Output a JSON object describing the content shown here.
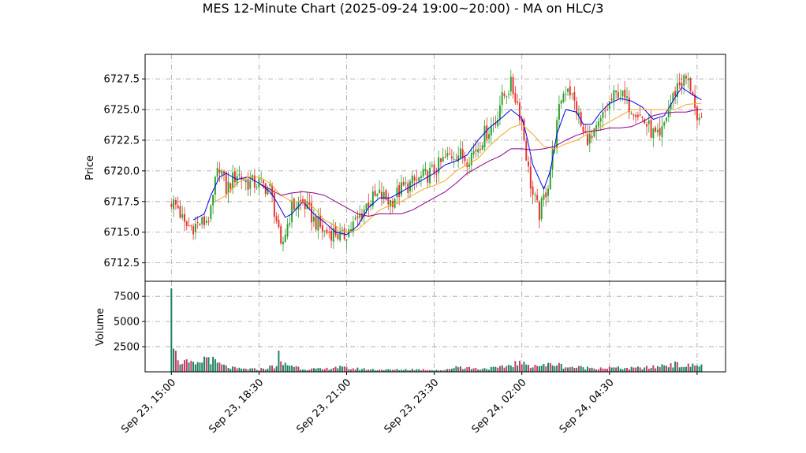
{
  "title": "MES 12-Minute Chart (2025-09-24 19:00~20:00) - MA on HLC/3",
  "colors": {
    "up": "#2ca02c",
    "down": "#e8312a",
    "vol_up": "#1a7f5f",
    "vol_down": "#c23a6a",
    "ma_fast": "#0000ee",
    "ma_mid": "#f5a623",
    "ma_slow": "#8b008b",
    "grid": "#a0a0a0"
  },
  "chart_data": [
    {
      "type": "candlestick",
      "ylabel": "Price",
      "ylim": [
        6711.0,
        6729.5
      ],
      "yticks": [
        6712.5,
        6715.0,
        6717.5,
        6720.0,
        6722.5,
        6725.0,
        6727.5
      ],
      "ytick_labels": [
        "6712.5",
        "6715.0",
        "6717.5",
        "6720.0",
        "6722.5",
        "6725.0",
        "6727.5"
      ],
      "x_range_bars": [
        -12,
        253
      ],
      "xticks": [
        0,
        40,
        80,
        120,
        160,
        200,
        240
      ],
      "xtick_labels": [
        "Sep 23, 15:00",
        "Sep 23, 18:30",
        "Sep 23, 21:00",
        "Sep 23, 23:30",
        "Sep 24, 02:00",
        "Sep 24, 04:30",
        ""
      ],
      "grid": true,
      "close_anchors": [
        [
          0,
          6717.5
        ],
        [
          3,
          6717.0
        ],
        [
          6,
          6715.5
        ],
        [
          10,
          6715.5
        ],
        [
          15,
          6715.8
        ],
        [
          18,
          6716.5
        ],
        [
          20,
          6719.0
        ],
        [
          22,
          6720.5
        ],
        [
          25,
          6718.5
        ],
        [
          30,
          6719.8
        ],
        [
          35,
          6719.0
        ],
        [
          40,
          6719.0
        ],
        [
          45,
          6718.5
        ],
        [
          48,
          6716.0
        ],
        [
          50,
          6713.5
        ],
        [
          52,
          6715.0
        ],
        [
          55,
          6717.0
        ],
        [
          60,
          6717.5
        ],
        [
          65,
          6716.0
        ],
        [
          70,
          6715.0
        ],
        [
          75,
          6715.0
        ],
        [
          78,
          6714.5
        ],
        [
          80,
          6715.0
        ],
        [
          85,
          6716.0
        ],
        [
          90,
          6717.5
        ],
        [
          95,
          6718.0
        ],
        [
          100,
          6717.5
        ],
        [
          105,
          6718.5
        ],
        [
          110,
          6719.0
        ],
        [
          115,
          6719.5
        ],
        [
          120,
          6720.0
        ],
        [
          125,
          6721.0
        ],
        [
          130,
          6721.5
        ],
        [
          135,
          6721.0
        ],
        [
          140,
          6722.0
        ],
        [
          143,
          6723.0
        ],
        [
          148,
          6724.0
        ],
        [
          150,
          6725.5
        ],
        [
          153,
          6726.5
        ],
        [
          155,
          6727.0
        ],
        [
          158,
          6725.5
        ],
        [
          160,
          6724.0
        ],
        [
          163,
          6720.0
        ],
        [
          165,
          6718.0
        ],
        [
          168,
          6716.5
        ],
        [
          172,
          6719.0
        ],
        [
          175,
          6722.5
        ],
        [
          178,
          6726.0
        ],
        [
          181,
          6727.0
        ],
        [
          185,
          6725.0
        ],
        [
          188,
          6723.0
        ],
        [
          192,
          6722.5
        ],
        [
          196,
          6724.0
        ],
        [
          200,
          6725.5
        ],
        [
          204,
          6726.5
        ],
        [
          208,
          6725.5
        ],
        [
          212,
          6725.0
        ],
        [
          216,
          6724.0
        ],
        [
          220,
          6723.0
        ],
        [
          223,
          6722.5
        ],
        [
          226,
          6724.5
        ],
        [
          228,
          6725.5
        ],
        [
          231,
          6727.0
        ],
        [
          235,
          6727.5
        ],
        [
          238,
          6726.5
        ],
        [
          240,
          6723.5
        ],
        [
          242,
          6724.0
        ]
      ],
      "series": [
        {
          "name": "",
          "role": "ma_fast",
          "values": [
            [
              10,
              6716.0
            ],
            [
              15,
              6716.5
            ],
            [
              18,
              6718.0
            ],
            [
              22,
              6719.5
            ],
            [
              25,
              6719.8
            ],
            [
              30,
              6719.3
            ],
            [
              35,
              6719.5
            ],
            [
              40,
              6719.0
            ],
            [
              45,
              6718.3
            ],
            [
              48,
              6717.5
            ],
            [
              52,
              6716.2
            ],
            [
              55,
              6716.5
            ],
            [
              60,
              6717.5
            ],
            [
              65,
              6716.5
            ],
            [
              70,
              6715.8
            ],
            [
              75,
              6715.0
            ],
            [
              80,
              6714.8
            ],
            [
              85,
              6715.5
            ],
            [
              90,
              6717.0
            ],
            [
              95,
              6717.8
            ],
            [
              100,
              6717.8
            ],
            [
              105,
              6718.3
            ],
            [
              110,
              6718.8
            ],
            [
              115,
              6719.3
            ],
            [
              120,
              6719.8
            ],
            [
              125,
              6720.5
            ],
            [
              130,
              6720.8
            ],
            [
              135,
              6721.3
            ],
            [
              140,
              6722.5
            ],
            [
              145,
              6723.5
            ],
            [
              150,
              6724.2
            ],
            [
              155,
              6725.0
            ],
            [
              160,
              6724.3
            ],
            [
              162,
              6723.0
            ],
            [
              165,
              6720.5
            ],
            [
              170,
              6718.5
            ],
            [
              173,
              6720.0
            ],
            [
              176,
              6723.0
            ],
            [
              180,
              6725.0
            ],
            [
              185,
              6724.8
            ],
            [
              188,
              6723.8
            ],
            [
              192,
              6723.8
            ],
            [
              196,
              6724.8
            ],
            [
              200,
              6725.5
            ],
            [
              205,
              6725.9
            ],
            [
              210,
              6725.7
            ],
            [
              215,
              6725.2
            ],
            [
              220,
              6724.2
            ],
            [
              225,
              6724.5
            ],
            [
              230,
              6726.0
            ],
            [
              233,
              6726.8
            ],
            [
              238,
              6726.2
            ],
            [
              242,
              6725.8
            ]
          ]
        },
        {
          "name": "",
          "role": "ma_mid",
          "values": [
            [
              20,
              6717.5
            ],
            [
              25,
              6718.0
            ],
            [
              30,
              6719.0
            ],
            [
              35,
              6719.5
            ],
            [
              40,
              6719.5
            ],
            [
              45,
              6719.0
            ],
            [
              50,
              6718.0
            ],
            [
              55,
              6717.5
            ],
            [
              60,
              6717.5
            ],
            [
              65,
              6717.0
            ],
            [
              70,
              6716.0
            ],
            [
              75,
              6715.5
            ],
            [
              80,
              6715.0
            ],
            [
              85,
              6715.2
            ],
            [
              90,
              6716.0
            ],
            [
              95,
              6716.8
            ],
            [
              100,
              6717.2
            ],
            [
              105,
              6717.5
            ],
            [
              110,
              6718.0
            ],
            [
              115,
              6718.5
            ],
            [
              120,
              6718.8
            ],
            [
              125,
              6719.2
            ],
            [
              130,
              6720.0
            ],
            [
              135,
              6720.5
            ],
            [
              140,
              6721.0
            ],
            [
              145,
              6722.0
            ],
            [
              150,
              6722.8
            ],
            [
              155,
              6723.5
            ],
            [
              160,
              6723.8
            ],
            [
              165,
              6723.0
            ],
            [
              170,
              6722.0
            ],
            [
              175,
              6721.8
            ],
            [
              180,
              6722.2
            ],
            [
              185,
              6722.5
            ],
            [
              190,
              6723.0
            ],
            [
              195,
              6723.5
            ],
            [
              200,
              6724.0
            ],
            [
              205,
              6724.5
            ],
            [
              210,
              6725.0
            ],
            [
              215,
              6725.0
            ],
            [
              220,
              6725.0
            ],
            [
              225,
              6725.0
            ],
            [
              230,
              6725.0
            ],
            [
              235,
              6725.4
            ],
            [
              240,
              6725.5
            ],
            [
              242,
              6725.5
            ]
          ]
        },
        {
          "name": "",
          "role": "ma_slow",
          "values": [
            [
              40,
              6719.0
            ],
            [
              45,
              6718.5
            ],
            [
              50,
              6718.0
            ],
            [
              55,
              6718.2
            ],
            [
              60,
              6718.3
            ],
            [
              65,
              6718.2
            ],
            [
              70,
              6718.0
            ],
            [
              75,
              6717.5
            ],
            [
              80,
              6717.0
            ],
            [
              85,
              6716.5
            ],
            [
              90,
              6716.3
            ],
            [
              95,
              6716.5
            ],
            [
              100,
              6716.5
            ],
            [
              105,
              6716.5
            ],
            [
              110,
              6716.8
            ],
            [
              115,
              6717.3
            ],
            [
              120,
              6717.8
            ],
            [
              125,
              6718.3
            ],
            [
              130,
              6719.0
            ],
            [
              135,
              6719.8
            ],
            [
              140,
              6720.3
            ],
            [
              145,
              6720.8
            ],
            [
              150,
              6721.2
            ],
            [
              155,
              6721.8
            ],
            [
              160,
              6721.8
            ],
            [
              165,
              6721.7
            ],
            [
              170,
              6721.8
            ],
            [
              175,
              6722.0
            ],
            [
              180,
              6722.5
            ],
            [
              185,
              6722.9
            ],
            [
              190,
              6723.2
            ],
            [
              195,
              6723.3
            ],
            [
              200,
              6723.5
            ],
            [
              205,
              6723.5
            ],
            [
              210,
              6723.6
            ],
            [
              215,
              6724.0
            ],
            [
              220,
              6724.5
            ],
            [
              225,
              6724.7
            ],
            [
              230,
              6724.8
            ],
            [
              235,
              6724.8
            ],
            [
              240,
              6725.0
            ],
            [
              242,
              6725.0
            ]
          ]
        }
      ]
    },
    {
      "type": "bar",
      "ylabel": "Volume",
      "ylim": [
        0,
        9000
      ],
      "yticks": [
        2500,
        5000,
        7500
      ],
      "ytick_labels": [
        "2500",
        "5000",
        "7500"
      ],
      "grid": true,
      "volume_anchors": [
        [
          0,
          8300
        ],
        [
          1,
          2300
        ],
        [
          2,
          2100
        ],
        [
          3,
          900
        ],
        [
          5,
          1100
        ],
        [
          8,
          800
        ],
        [
          12,
          700
        ],
        [
          15,
          1300
        ],
        [
          17,
          1500
        ],
        [
          20,
          900
        ],
        [
          25,
          500
        ],
        [
          30,
          300
        ],
        [
          40,
          250
        ],
        [
          48,
          600
        ],
        [
          49,
          1600
        ],
        [
          50,
          800
        ],
        [
          55,
          650
        ],
        [
          60,
          300
        ],
        [
          70,
          250
        ],
        [
          75,
          500
        ],
        [
          80,
          350
        ],
        [
          90,
          250
        ],
        [
          100,
          200
        ],
        [
          110,
          250
        ],
        [
          120,
          200
        ],
        [
          125,
          150
        ],
        [
          130,
          550
        ],
        [
          140,
          300
        ],
        [
          150,
          400
        ],
        [
          158,
          900
        ],
        [
          162,
          650
        ],
        [
          165,
          700
        ],
        [
          170,
          600
        ],
        [
          175,
          800
        ],
        [
          180,
          500
        ],
        [
          190,
          400
        ],
        [
          200,
          400
        ],
        [
          210,
          350
        ],
        [
          220,
          450
        ],
        [
          228,
          800
        ],
        [
          235,
          550
        ],
        [
          240,
          700
        ],
        [
          242,
          600
        ]
      ]
    }
  ]
}
